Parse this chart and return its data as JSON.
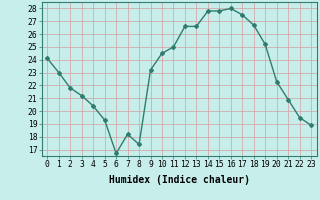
{
  "x": [
    0,
    1,
    2,
    3,
    4,
    5,
    6,
    7,
    8,
    9,
    10,
    11,
    12,
    13,
    14,
    15,
    16,
    17,
    18,
    19,
    20,
    21,
    22,
    23
  ],
  "y": [
    24.1,
    23.0,
    21.8,
    21.2,
    20.4,
    19.3,
    16.7,
    18.2,
    17.4,
    23.2,
    24.5,
    25.0,
    26.6,
    26.6,
    27.8,
    27.8,
    28.0,
    27.5,
    26.7,
    25.2,
    22.3,
    20.9,
    19.5,
    18.9
  ],
  "line_color": "#2e7d6e",
  "marker": "D",
  "marker_size": 2.0,
  "bg_color": "#c8eeec",
  "grid_color": "#b0d8d6",
  "xlabel": "Humidex (Indice chaleur)",
  "xlim": [
    -0.5,
    23.5
  ],
  "ylim": [
    16.5,
    28.5
  ],
  "yticks": [
    17,
    18,
    19,
    20,
    21,
    22,
    23,
    24,
    25,
    26,
    27,
    28
  ],
  "xticks": [
    0,
    1,
    2,
    3,
    4,
    5,
    6,
    7,
    8,
    9,
    10,
    11,
    12,
    13,
    14,
    15,
    16,
    17,
    18,
    19,
    20,
    21,
    22,
    23
  ],
  "xlabel_fontsize": 7,
  "tick_fontsize": 5.8,
  "linewidth": 1.0
}
